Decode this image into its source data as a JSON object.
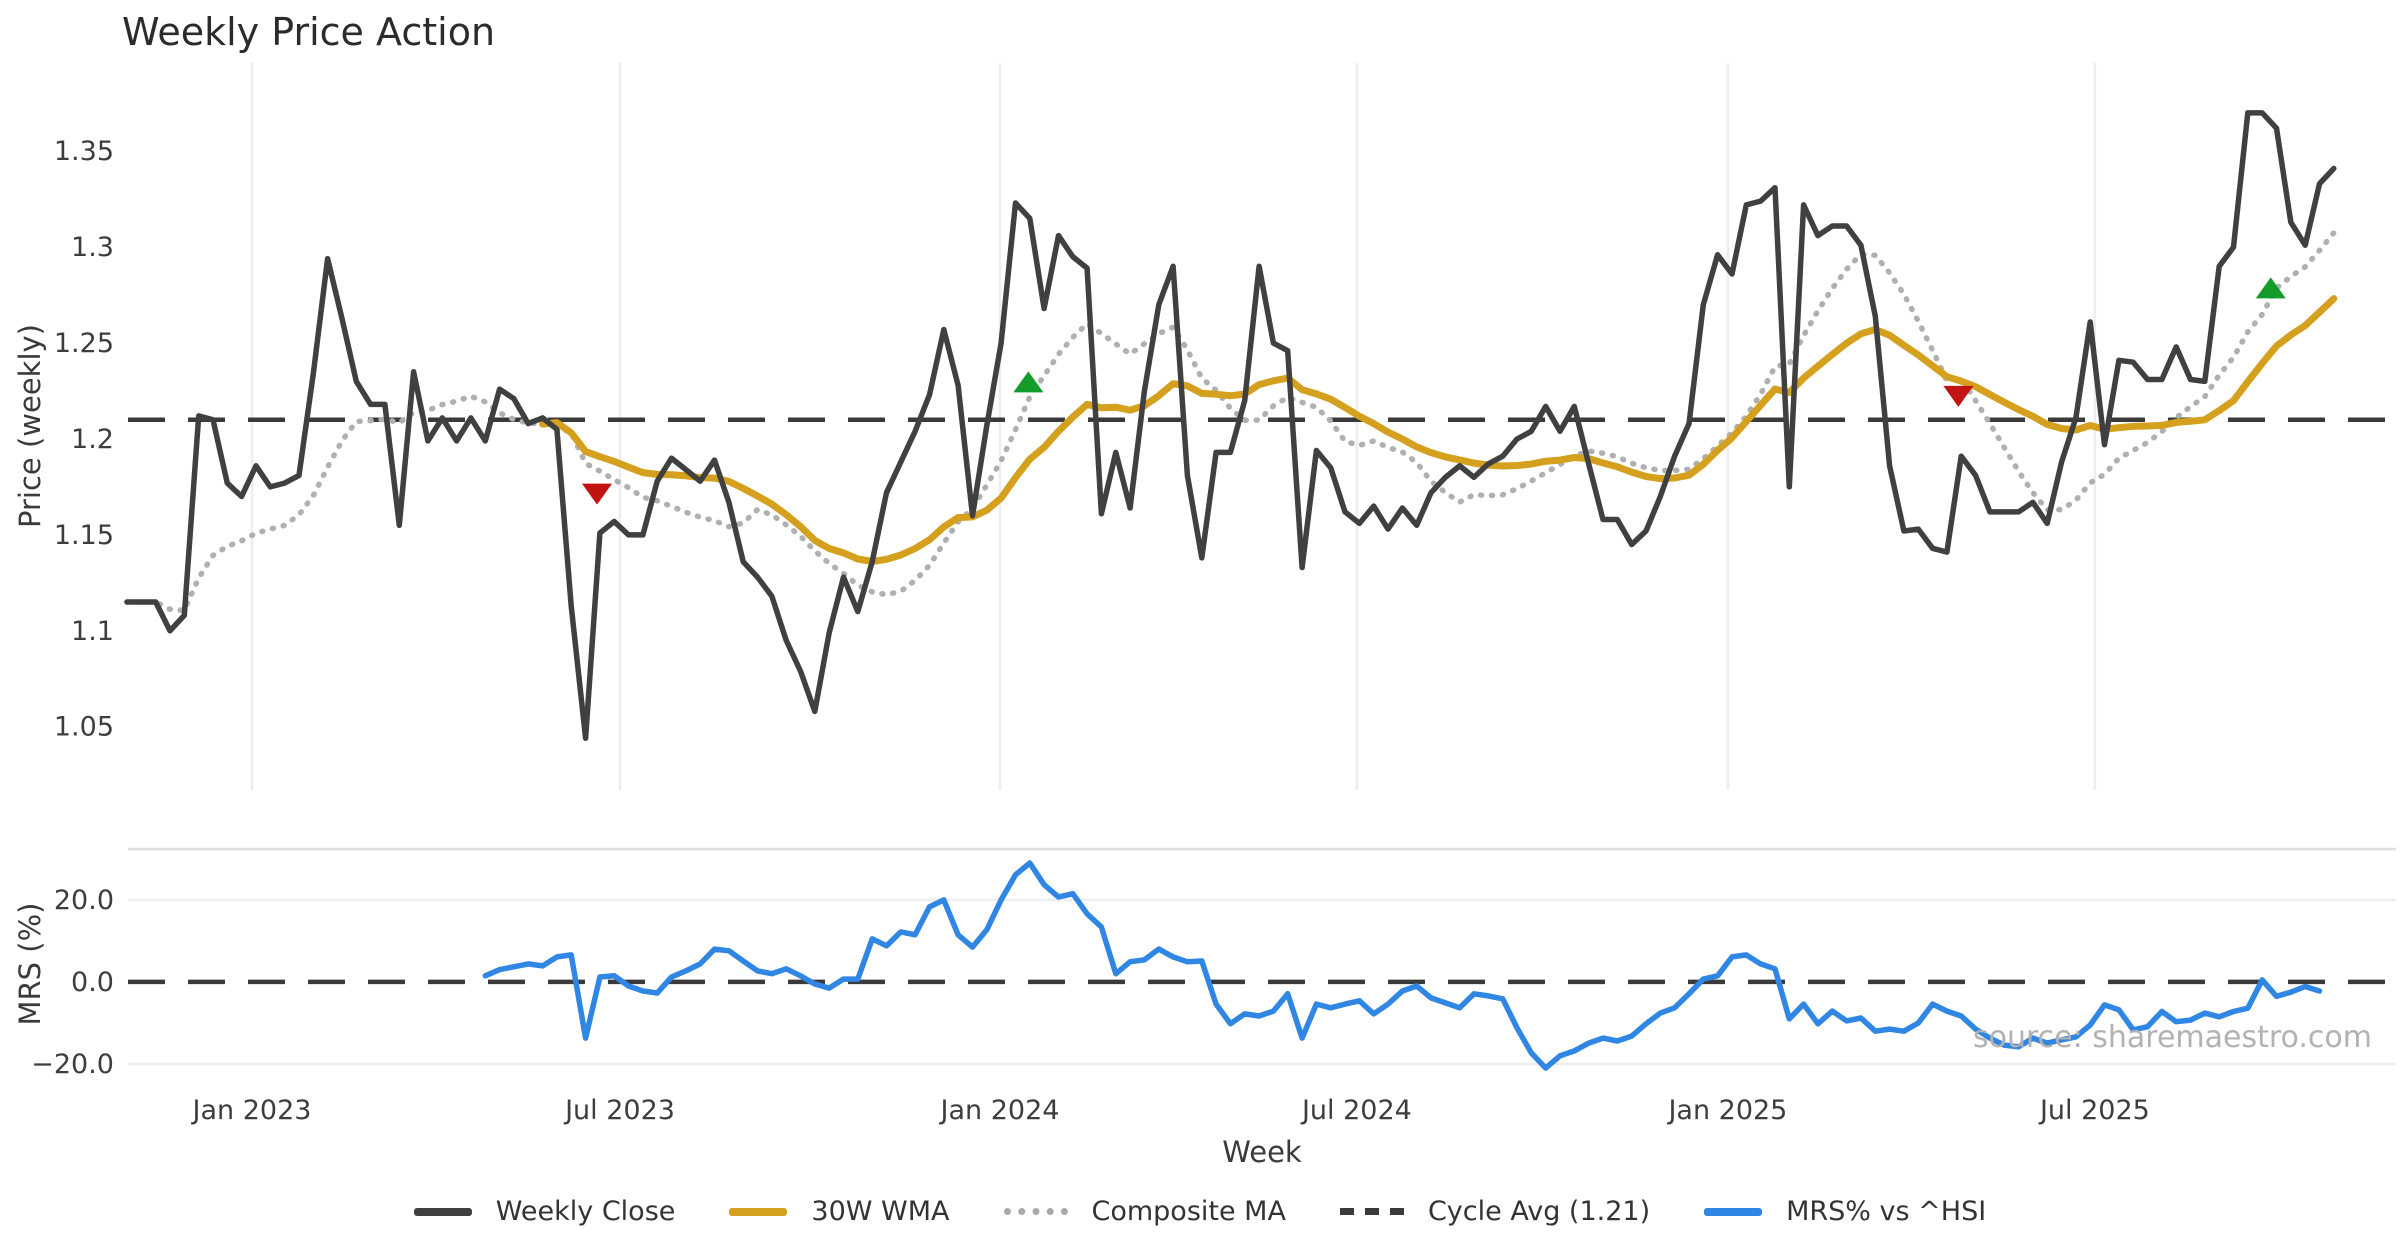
{
  "title": "Weekly Price Action",
  "source_text": "source: sharemaestro.com",
  "chart_data": {
    "type": "line",
    "xlabel": "Week",
    "x_unit": "week_index",
    "week_ticks": [
      {
        "week": 8.72,
        "label": "Jan 2023"
      },
      {
        "week": 34.4,
        "label": "Jul 2023"
      },
      {
        "week": 60.92,
        "label": "Jan 2024"
      },
      {
        "week": 85.83,
        "label": "Jul 2024"
      },
      {
        "week": 111.72,
        "label": "Jan 2025"
      },
      {
        "week": 137.33,
        "label": "Jul 2025"
      }
    ],
    "price_panel": {
      "ylabel": "Price (weekly)",
      "ylim": [
        1.017,
        1.396
      ],
      "yticks": [
        1.05,
        1.1,
        1.15,
        1.2,
        1.25,
        1.3,
        1.35
      ],
      "grid": "vertical-only",
      "cycle_avg": 1.21,
      "weekly_close": {
        "name": "Weekly Close",
        "start_week": 0,
        "values": [
          1.115,
          1.115,
          1.115,
          1.1,
          1.108,
          1.212,
          1.21,
          1.177,
          1.17,
          1.186,
          1.175,
          1.177,
          1.181,
          1.234,
          1.294,
          1.263,
          1.23,
          1.218,
          1.218,
          1.155,
          1.235,
          1.199,
          1.211,
          1.199,
          1.211,
          1.199,
          1.226,
          1.221,
          1.208,
          1.211,
          1.205,
          1.113,
          1.044,
          1.151,
          1.157,
          1.15,
          1.15,
          1.178,
          1.19,
          1.184,
          1.178,
          1.189,
          1.167,
          1.136,
          1.128,
          1.118,
          1.095,
          1.079,
          1.058,
          1.099,
          1.128,
          1.11,
          1.136,
          1.172,
          1.188,
          1.204,
          1.223,
          1.257,
          1.228,
          1.16,
          1.207,
          1.25,
          1.323,
          1.315,
          1.268,
          1.306,
          1.295,
          1.289,
          1.161,
          1.193,
          1.164,
          1.225,
          1.27,
          1.29,
          1.181,
          1.138,
          1.193,
          1.193,
          1.22,
          1.29,
          1.25,
          1.246,
          1.133,
          1.194,
          1.185,
          1.162,
          1.156,
          1.165,
          1.153,
          1.164,
          1.155,
          1.172,
          1.18,
          1.186,
          1.18,
          1.187,
          1.191,
          1.2,
          1.204,
          1.217,
          1.204,
          1.217,
          1.187,
          1.158,
          1.158,
          1.145,
          1.152,
          1.17,
          1.191,
          1.208,
          1.27,
          1.296,
          1.286,
          1.322,
          1.324,
          1.331,
          1.175,
          1.322,
          1.306,
          1.311,
          1.311,
          1.301,
          1.264,
          1.186,
          1.152,
          1.153,
          1.143,
          1.141,
          1.191,
          1.181,
          1.162,
          1.162,
          1.162,
          1.167,
          1.156,
          1.188,
          1.211,
          1.261,
          1.197,
          1.241,
          1.24,
          1.231,
          1.231,
          1.248,
          1.231,
          1.23,
          1.29,
          1.3,
          1.37,
          1.37,
          1.362,
          1.313,
          1.301,
          1.333,
          1.341
        ]
      },
      "wma_30w": {
        "name": "30W WMA",
        "derived_from": "weekly_close",
        "window": 30,
        "weighting": "linear"
      },
      "composite_ma": {
        "name": "Composite MA",
        "derived_from": "weekly_close",
        "window": 12,
        "weighting": "simple"
      },
      "markers": {
        "sell": [
          {
            "week": 32.8,
            "price": 1.172
          },
          {
            "week": 127.8,
            "price": 1.223
          }
        ],
        "buy": [
          {
            "week": 62.9,
            "price": 1.229
          },
          {
            "week": 149.6,
            "price": 1.278
          }
        ]
      }
    },
    "mrs_panel": {
      "ylabel": "MRS (%)",
      "ylim": [
        -23.9,
        32.4
      ],
      "yticks": [
        -20.0,
        0.0,
        20.0
      ],
      "zero_line": 0,
      "mrs_series": {
        "name": "MRS% vs ^HSI",
        "start_week": 25,
        "values": [
          1.5,
          3.0,
          3.7,
          4.4,
          3.9,
          6.1,
          6.6,
          -13.7,
          1.2,
          1.5,
          -1.0,
          -2.2,
          -2.7,
          1.2,
          2.7,
          4.4,
          8.0,
          7.6,
          5.1,
          2.7,
          2.0,
          3.2,
          1.5,
          -0.5,
          -1.5,
          0.7,
          0.7,
          10.5,
          8.8,
          12.2,
          11.5,
          18.3,
          20.0,
          11.5,
          8.5,
          12.7,
          20.0,
          26.1,
          29.0,
          23.7,
          20.7,
          21.5,
          16.6,
          13.4,
          2.0,
          4.9,
          5.4,
          8.0,
          6.1,
          4.9,
          5.1,
          -5.4,
          -10.2,
          -7.8,
          -8.3,
          -7.1,
          -2.9,
          -13.7,
          -5.4,
          -6.3,
          -5.4,
          -4.6,
          -7.8,
          -5.4,
          -2.2,
          -1.0,
          -3.9,
          -5.1,
          -6.3,
          -2.9,
          -3.4,
          -4.1,
          -11.2,
          -17.3,
          -21.0,
          -18.0,
          -16.8,
          -14.9,
          -13.7,
          -14.4,
          -13.2,
          -10.2,
          -7.6,
          -6.3,
          -2.9,
          0.7,
          1.5,
          6.1,
          6.6,
          4.4,
          3.2,
          -9.0,
          -5.4,
          -10.2,
          -7.1,
          -9.5,
          -8.8,
          -12.0,
          -11.5,
          -12.0,
          -10.0,
          -5.4,
          -7.1,
          -8.3,
          -11.5,
          -13.7,
          -15.4,
          -15.8,
          -13.7,
          -14.9,
          -14.1,
          -13.4,
          -10.5,
          -5.6,
          -6.8,
          -11.7,
          -10.9,
          -7.2,
          -9.7,
          -9.3,
          -7.6,
          -8.5,
          -7.2,
          -6.4,
          0.5,
          -3.5,
          -2.5,
          -1.1,
          -2.2
        ]
      }
    },
    "legend": [
      {
        "label": "Weekly Close",
        "color": "#404040",
        "style": "solid"
      },
      {
        "label": "30W WMA",
        "color": "#d4a01d",
        "style": "solid"
      },
      {
        "label": "Composite MA",
        "color": "#a9a9a9",
        "style": "dotted"
      },
      {
        "label": "Cycle Avg (1.21)",
        "color": "#3a3a3a",
        "style": "dashed"
      },
      {
        "label": "MRS% vs ^HSI",
        "color": "#2f86e3",
        "style": "solid"
      }
    ],
    "colors": {
      "close": "#404040",
      "wma": "#d4a01d",
      "composite": "#b0b0b0",
      "cycle_dash": "#3a3a3a",
      "mrs_line": "#2f86e3",
      "buy_marker": "#149b2a",
      "sell_marker": "#c31212",
      "gridline": "#ededf2",
      "tick_text": "#3d3d3d"
    }
  }
}
